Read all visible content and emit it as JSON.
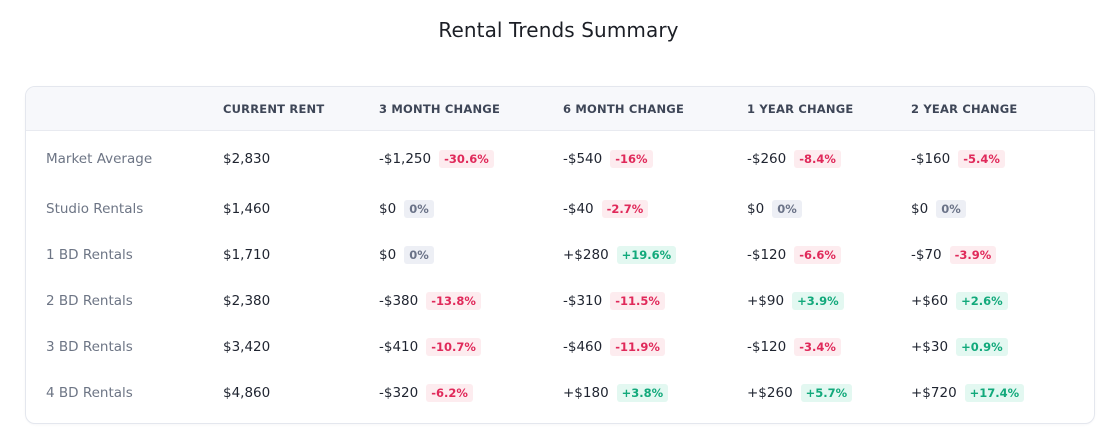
{
  "page": {
    "title": "Rental Trends Summary"
  },
  "table": {
    "headers": [
      "",
      "CURRENT RENT",
      "3 MONTH CHANGE",
      "6 MONTH CHANGE",
      "1 YEAR CHANGE",
      "2 YEAR CHANGE"
    ],
    "rows": [
      {
        "label": "Market Average",
        "current": "$2,830",
        "changes": [
          {
            "value": "-$1,250",
            "pct": "-30.6%",
            "trend": "neg"
          },
          {
            "value": "-$540",
            "pct": "-16%",
            "trend": "neg"
          },
          {
            "value": "-$260",
            "pct": "-8.4%",
            "trend": "neg"
          },
          {
            "value": "-$160",
            "pct": "-5.4%",
            "trend": "neg"
          }
        ]
      },
      {
        "label": "Studio Rentals",
        "current": "$1,460",
        "changes": [
          {
            "value": "$0",
            "pct": "0%",
            "trend": "zero"
          },
          {
            "value": "-$40",
            "pct": "-2.7%",
            "trend": "neg"
          },
          {
            "value": "$0",
            "pct": "0%",
            "trend": "zero"
          },
          {
            "value": "$0",
            "pct": "0%",
            "trend": "zero"
          }
        ]
      },
      {
        "label": "1 BD Rentals",
        "current": "$1,710",
        "changes": [
          {
            "value": "$0",
            "pct": "0%",
            "trend": "zero"
          },
          {
            "value": "+$280",
            "pct": "+19.6%",
            "trend": "pos"
          },
          {
            "value": "-$120",
            "pct": "-6.6%",
            "trend": "neg"
          },
          {
            "value": "-$70",
            "pct": "-3.9%",
            "trend": "neg"
          }
        ]
      },
      {
        "label": "2 BD Rentals",
        "current": "$2,380",
        "changes": [
          {
            "value": "-$380",
            "pct": "-13.8%",
            "trend": "neg"
          },
          {
            "value": "-$310",
            "pct": "-11.5%",
            "trend": "neg"
          },
          {
            "value": "+$90",
            "pct": "+3.9%",
            "trend": "pos"
          },
          {
            "value": "+$60",
            "pct": "+2.6%",
            "trend": "pos"
          }
        ]
      },
      {
        "label": "3 BD Rentals",
        "current": "$3,420",
        "changes": [
          {
            "value": "-$410",
            "pct": "-10.7%",
            "trend": "neg"
          },
          {
            "value": "-$460",
            "pct": "-11.9%",
            "trend": "neg"
          },
          {
            "value": "-$120",
            "pct": "-3.4%",
            "trend": "neg"
          },
          {
            "value": "+$30",
            "pct": "+0.9%",
            "trend": "pos"
          }
        ]
      },
      {
        "label": "4 BD Rentals",
        "current": "$4,860",
        "changes": [
          {
            "value": "-$320",
            "pct": "-6.2%",
            "trend": "neg"
          },
          {
            "value": "+$180",
            "pct": "+3.8%",
            "trend": "pos"
          },
          {
            "value": "+$260",
            "pct": "+5.7%",
            "trend": "pos"
          },
          {
            "value": "+$720",
            "pct": "+17.4%",
            "trend": "pos"
          }
        ]
      }
    ]
  },
  "colors": {
    "negative_text": "#e0295a",
    "negative_bg": "#fdecef",
    "positive_text": "#12a97b",
    "positive_bg": "#e3f8f1",
    "neutral_text": "#6b7388",
    "neutral_bg": "#edeff5"
  }
}
